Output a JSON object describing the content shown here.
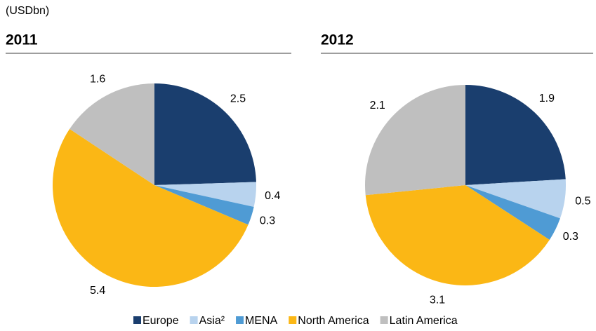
{
  "unit": "(USDbn)",
  "chart_data": [
    {
      "type": "pie",
      "title": "2011",
      "categories": [
        "Europe",
        "Asia²",
        "MENA",
        "North America",
        "Latin America"
      ],
      "values": [
        2.5,
        0.4,
        0.3,
        5.4,
        1.6
      ],
      "colors": [
        "#1a3e6e",
        "#b8d3ee",
        "#4f9bd4",
        "#fbb715",
        "#bfbfbf"
      ]
    },
    {
      "type": "pie",
      "title": "2012",
      "categories": [
        "Europe",
        "Asia²",
        "MENA",
        "North America",
        "Latin America"
      ],
      "values": [
        1.9,
        0.5,
        0.3,
        3.1,
        2.1
      ],
      "colors": [
        "#1a3e6e",
        "#b8d3ee",
        "#4f9bd4",
        "#fbb715",
        "#bfbfbf"
      ]
    }
  ]
}
